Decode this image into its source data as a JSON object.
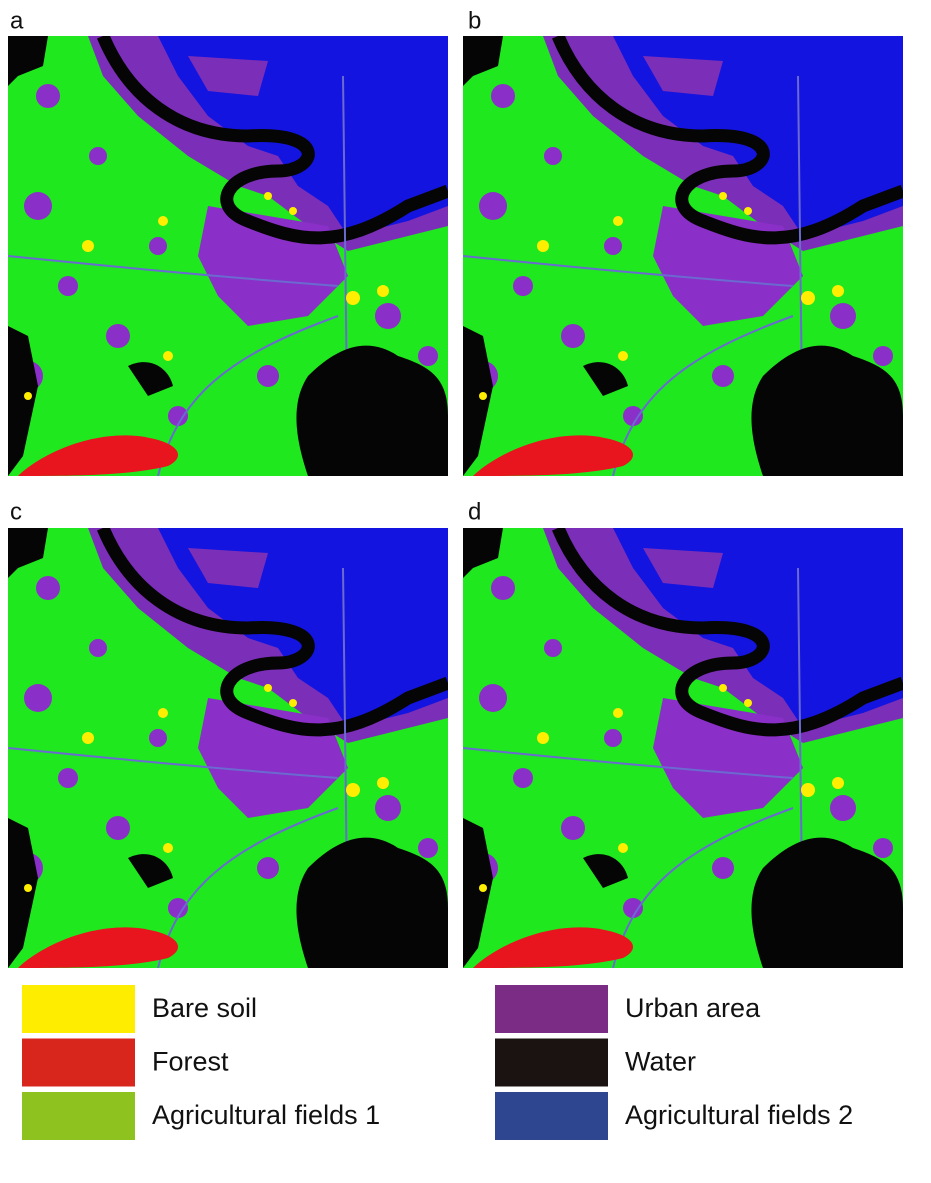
{
  "panels": [
    {
      "label": "a"
    },
    {
      "label": "b"
    },
    {
      "label": "c"
    },
    {
      "label": "d"
    }
  ],
  "legend": [
    {
      "label": "Bare soil",
      "color": "#ffed00"
    },
    {
      "label": "Forest",
      "color": "#d9261c"
    },
    {
      "label": "Agricultural fields 1",
      "color": "#8dc21f"
    },
    {
      "label": "Urban area",
      "color": "#7b2d85"
    },
    {
      "label": "Water",
      "color": "#1a1311"
    },
    {
      "label": "Agricultural fields 2",
      "color": "#2e4690"
    }
  ]
}
